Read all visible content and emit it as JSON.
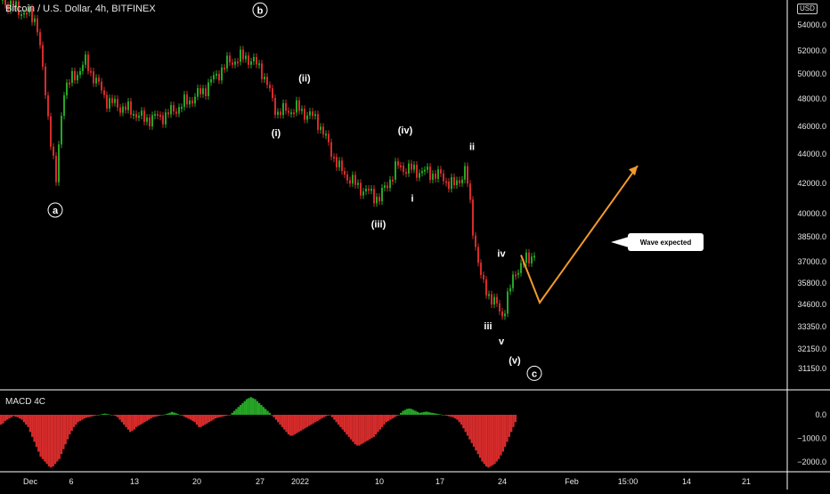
{
  "title": "Bitcoin / U.S. Dollar, 4h, BITFINEX",
  "currency": "USD",
  "macd_title": "MACD 4C",
  "callout": "Wave expected",
  "colors": {
    "up": "#26a626",
    "down": "#d62b2b",
    "arrow": "#f39a2b",
    "grid": "#ffffff",
    "text": "#e6e6e6"
  },
  "chart_data": {
    "type": "line",
    "title": "Bitcoin / U.S. Dollar, 4h, BITFINEX",
    "ylim": [
      30000,
      56000
    ],
    "y_ticks": [
      54000,
      52000,
      50000,
      48000,
      46000,
      44000,
      42000,
      40000,
      38500,
      37000,
      35800,
      34600,
      33350,
      32150,
      31150
    ],
    "y_tick_labels": [
      "54000.0",
      "52000.0",
      "50000.0",
      "48000.0",
      "46000.0",
      "44000.0",
      "42000.0",
      "40000.0",
      "38500.0",
      "37000.0",
      "35800.0",
      "34600.0",
      "33350.0",
      "32150.0",
      "31150.0"
    ],
    "x_ticks": [
      "Dec",
      "6",
      "13",
      "20",
      "27",
      "2022",
      "10",
      "17",
      "24",
      "Feb",
      "15:00",
      "14",
      "21"
    ],
    "price_series": [
      [
        "Dec 1",
        56200
      ],
      [
        "Dec 3",
        54500
      ],
      [
        "Dec 4 (low)",
        42000
      ],
      [
        "Dec 5",
        48700
      ],
      [
        "Dec 7",
        51000
      ],
      [
        "Dec 10",
        47800
      ],
      [
        "Dec 13",
        47000
      ],
      [
        "Dec 14",
        46500
      ],
      [
        "Dec 17",
        46800
      ],
      [
        "Dec 21",
        48500
      ],
      [
        "Dec 24",
        51000
      ],
      [
        "Dec 27",
        51500
      ],
      [
        "Dec 28",
        50500
      ],
      [
        "Dec 30",
        47000
      ],
      [
        "Jan 1",
        47300
      ],
      [
        "Jan 3",
        46500
      ],
      [
        "Jan 5",
        43000
      ],
      [
        "Jan 7",
        41800
      ],
      [
        "Jan 10",
        41000
      ],
      [
        "Jan 12",
        43200
      ],
      [
        "Jan 14",
        43000
      ],
      [
        "Jan 17",
        42600
      ],
      [
        "Jan 19",
        41800
      ],
      [
        "Jan 20",
        43000
      ],
      [
        "Jan 21",
        39000
      ],
      [
        "Jan 22",
        35800
      ],
      [
        "Jan 24",
        34000
      ],
      [
        "Jan 25",
        36500
      ],
      [
        "Jan 26",
        37600
      ]
    ],
    "projection": [
      [
        "Jan 27",
        37400
      ],
      [
        "Jan 31",
        34700
      ],
      [
        "Feb 8",
        43200
      ]
    ],
    "wave_labels": [
      {
        "text": "b",
        "price": 55000,
        "date": "Dec 28",
        "circled": true
      },
      {
        "text": "a",
        "price": 40000,
        "date": "Dec 4",
        "circled": true
      },
      {
        "text": "(ii)",
        "price": 49400,
        "date": "Jan 2"
      },
      {
        "text": "(i)",
        "price": 45300,
        "date": "Dec 30"
      },
      {
        "text": "(iv)",
        "price": 45500,
        "date": "Jan 14"
      },
      {
        "text": "ii",
        "price": 44300,
        "date": "Jan 21"
      },
      {
        "text": "i",
        "price": 40800,
        "date": "Jan 15"
      },
      {
        "text": "(iii)",
        "price": 39100,
        "date": "Jan 10"
      },
      {
        "text": "iv",
        "price": 37300,
        "date": "Jan 24"
      },
      {
        "text": "iii",
        "price": 33200,
        "date": "Jan 23"
      },
      {
        "text": "v",
        "price": 32400,
        "date": "Jan 24"
      },
      {
        "text": "(v)",
        "price": 31400,
        "date": "Jan 25"
      },
      {
        "text": "c",
        "price": 30700,
        "date": "Jan 26",
        "circled": true
      }
    ],
    "macd": {
      "ylim": [
        -2200,
        1100
      ],
      "y_ticks": [
        0,
        -1000,
        -2000
      ],
      "y_tick_labels": [
        "0.0",
        "−1000.0",
        "−2000.0"
      ],
      "histogram": [
        -400,
        -350,
        -250,
        -200,
        -150,
        -100,
        -50,
        -80,
        -100,
        -150,
        -200,
        -300,
        -400,
        -500,
        -700,
        -900,
        -1100,
        -1300,
        -1500,
        -1700,
        -1800,
        -1900,
        -2000,
        -2100,
        -2150,
        -2100,
        -2000,
        -1900,
        -1800,
        -1600,
        -1400,
        -1200,
        -1000,
        -800,
        -650,
        -500,
        -400,
        -300,
        -250,
        -200,
        -150,
        -120,
        -100,
        -80,
        -60,
        -40,
        -20,
        0,
        20,
        50,
        60,
        40,
        20,
        0,
        -20,
        -50,
        -100,
        -200,
        -300,
        -400,
        -500,
        -600,
        -700,
        -650,
        -600,
        -500,
        -450,
        -400,
        -350,
        -300,
        -250,
        -200,
        -150,
        -100,
        -80,
        -60,
        -40,
        -20,
        0,
        30,
        60,
        100,
        150,
        120,
        80,
        40,
        0,
        -30,
        -80,
        -120,
        -160,
        -200,
        -250,
        -300,
        -400,
        -500,
        -500,
        -450,
        -400,
        -350,
        -300,
        -250,
        -200,
        -150,
        -120,
        -100,
        -80,
        -60,
        -40,
        -20,
        0,
        100,
        200,
        300,
        400,
        500,
        600,
        700,
        800,
        850,
        900,
        850,
        800,
        700,
        600,
        500,
        400,
        300,
        200,
        100,
        0,
        -100,
        -200,
        -300,
        -400,
        -500,
        -600,
        -700,
        -800,
        -850,
        -850,
        -800,
        -750,
        -700,
        -650,
        -600,
        -550,
        -500,
        -450,
        -400,
        -350,
        -300,
        -250,
        -200,
        -150,
        -100,
        -60,
        -30,
        0,
        -100,
        -200,
        -300,
        -400,
        -500,
        -600,
        -700,
        -800,
        -900,
        -1000,
        -1100,
        -1200,
        -1250,
        -1250,
        -1200,
        -1150,
        -1100,
        -1050,
        -1000,
        -950,
        -900,
        -800,
        -700,
        -600,
        -500,
        -400,
        -300,
        -250,
        -200,
        -150,
        -100,
        -50,
        0,
        100,
        200,
        250,
        300,
        320,
        300,
        250,
        200,
        150,
        100,
        120,
        140,
        160,
        150,
        120,
        100,
        80,
        60,
        40,
        20,
        0,
        -20,
        -40,
        -60,
        -80,
        -100,
        -150,
        -200,
        -300,
        -400,
        -550,
        -700,
        -850,
        -1000,
        -1150,
        -1300,
        -1450,
        -1600,
        -1750,
        -1900,
        -2000,
        -2100,
        -2150,
        -2100,
        -2050,
        -2000,
        -1900,
        -1800,
        -1650,
        -1500,
        -1300,
        -1100,
        -900,
        -700,
        -500,
        -300
      ]
    }
  }
}
